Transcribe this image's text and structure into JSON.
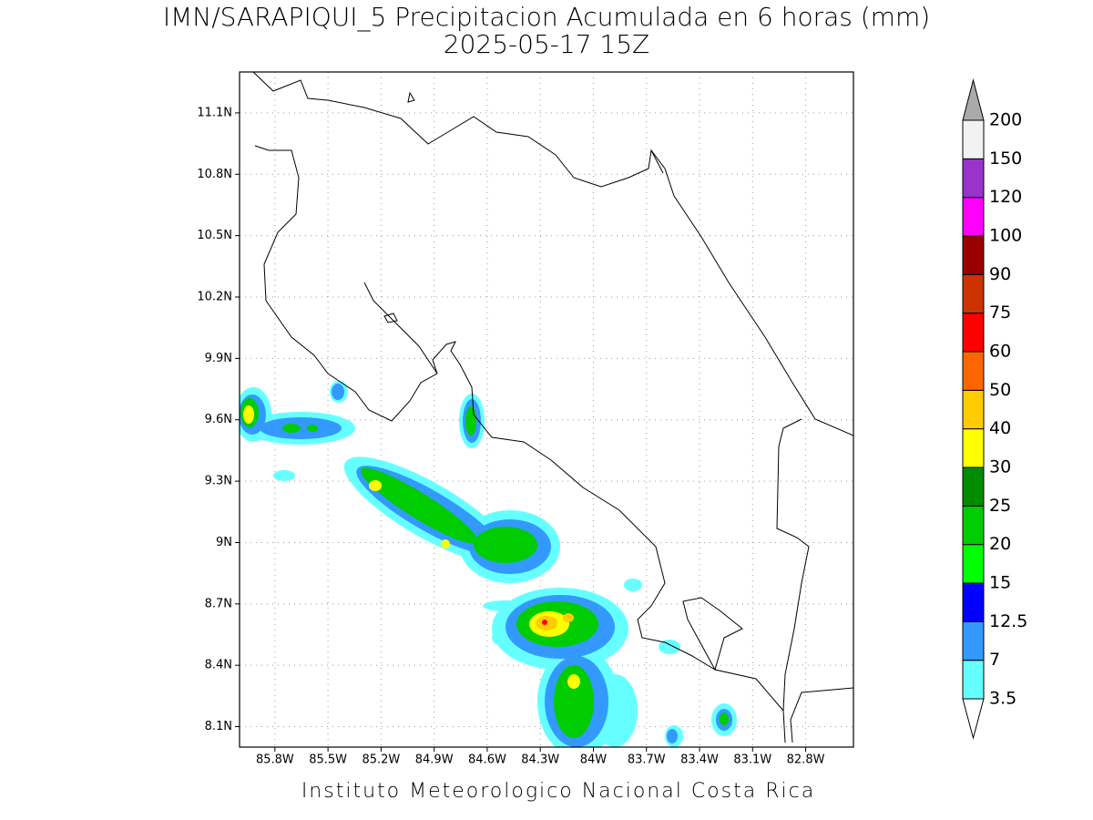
{
  "title": "IMN/SARAPIQUI_5 Precipitacion Acumulada en 6 horas (mm)",
  "subtitle": "2025-05-17 15Z",
  "footer": "Instituto Meteorologico Nacional Costa Rica",
  "map": {
    "xlim": [
      -86.0,
      -82.53
    ],
    "ylim": [
      8.0,
      11.3
    ],
    "xticks": [
      {
        "value": -85.8,
        "label": "85.8W"
      },
      {
        "value": -85.5,
        "label": "85.5W"
      },
      {
        "value": -85.2,
        "label": "85.2W"
      },
      {
        "value": -84.9,
        "label": "84.9W"
      },
      {
        "value": -84.6,
        "label": "84.6W"
      },
      {
        "value": -84.3,
        "label": "84.3W"
      },
      {
        "value": -84.0,
        "label": "84W"
      },
      {
        "value": -83.7,
        "label": "83.7W"
      },
      {
        "value": -83.4,
        "label": "83.4W"
      },
      {
        "value": -83.1,
        "label": "83.1W"
      },
      {
        "value": -82.8,
        "label": "82.8W"
      }
    ],
    "yticks": [
      {
        "value": 8.1,
        "label": "8.1N"
      },
      {
        "value": 8.4,
        "label": "8.4N"
      },
      {
        "value": 8.7,
        "label": "8.7N"
      },
      {
        "value": 9.0,
        "label": "9N"
      },
      {
        "value": 9.3,
        "label": "9.3N"
      },
      {
        "value": 9.6,
        "label": "9.6N"
      },
      {
        "value": 9.9,
        "label": "9.9N"
      },
      {
        "value": 10.2,
        "label": "10.2N"
      },
      {
        "value": 10.5,
        "label": "10.5N"
      },
      {
        "value": 10.8,
        "label": "10.8N"
      },
      {
        "value": 11.1,
        "label": "11.1N"
      }
    ],
    "grid": true
  },
  "colorbar": {
    "levels": [
      3.5,
      7,
      12.5,
      15,
      20,
      25,
      30,
      40,
      50,
      60,
      75,
      90,
      100,
      120,
      150,
      200
    ],
    "colors": [
      "#66ffff",
      "#3399ff",
      "#0000ff",
      "#00ff00",
      "#00cc00",
      "#008c00",
      "#ffff00",
      "#ffcc00",
      "#ff6600",
      "#ff0000",
      "#cc3300",
      "#990000",
      "#ff00ff",
      "#9933cc",
      "#f2f2f2"
    ],
    "under_color": "#ffffff",
    "over_color": "#aaaaaa"
  }
}
